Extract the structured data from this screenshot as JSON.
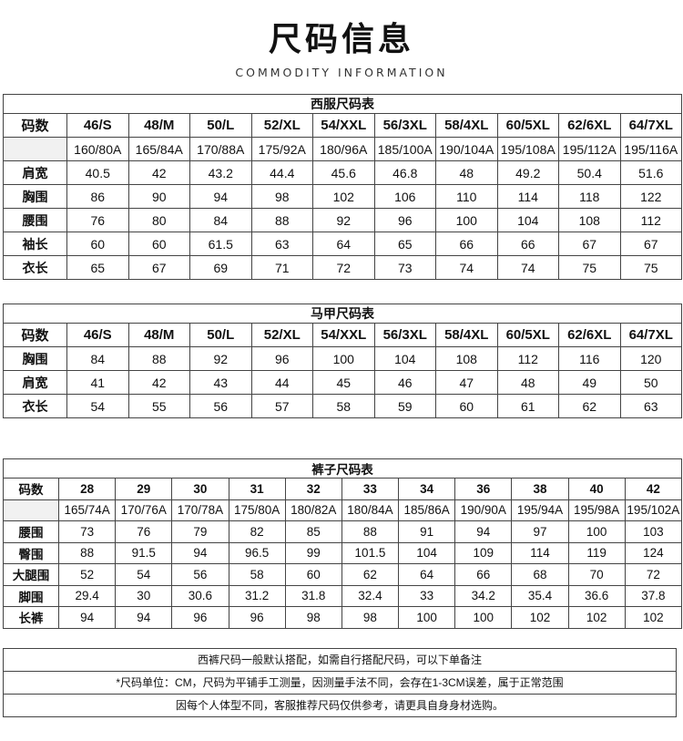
{
  "header": {
    "title": "尺码信息",
    "subtitle": "COMMODITY INFORMATION"
  },
  "tables": [
    {
      "caption": "西服尺码表",
      "header_label": "码数",
      "sizes": [
        "46/S",
        "48/M",
        "50/L",
        "52/XL",
        "54/XXL",
        "56/3XL",
        "58/4XL",
        "60/5XL",
        "62/6XL",
        "64/7XL"
      ],
      "rows": [
        {
          "label": "",
          "values": [
            "160/80A",
            "165/84A",
            "170/88A",
            "175/92A",
            "180/96A",
            "185/100A",
            "190/104A",
            "195/108A",
            "195/112A",
            "195/116A"
          ]
        },
        {
          "label": "肩宽",
          "values": [
            "40.5",
            "42",
            "43.2",
            "44.4",
            "45.6",
            "46.8",
            "48",
            "49.2",
            "50.4",
            "51.6"
          ]
        },
        {
          "label": "胸围",
          "values": [
            "86",
            "90",
            "94",
            "98",
            "102",
            "106",
            "110",
            "114",
            "118",
            "122"
          ]
        },
        {
          "label": "腰围",
          "values": [
            "76",
            "80",
            "84",
            "88",
            "92",
            "96",
            "100",
            "104",
            "108",
            "112"
          ]
        },
        {
          "label": "袖长",
          "values": [
            "60",
            "60",
            "61.5",
            "63",
            "64",
            "65",
            "66",
            "66",
            "67",
            "67"
          ]
        },
        {
          "label": "衣长",
          "values": [
            "65",
            "67",
            "69",
            "71",
            "72",
            "73",
            "74",
            "74",
            "75",
            "75"
          ]
        }
      ]
    },
    {
      "caption": "马甲尺码表",
      "header_label": "码数",
      "sizes": [
        "46/S",
        "48/M",
        "50/L",
        "52/XL",
        "54/XXL",
        "56/3XL",
        "58/4XL",
        "60/5XL",
        "62/6XL",
        "64/7XL"
      ],
      "rows": [
        {
          "label": "胸围",
          "values": [
            "84",
            "88",
            "92",
            "96",
            "100",
            "104",
            "108",
            "112",
            "116",
            "120"
          ]
        },
        {
          "label": "肩宽",
          "values": [
            "41",
            "42",
            "43",
            "44",
            "45",
            "46",
            "47",
            "48",
            "49",
            "50"
          ]
        },
        {
          "label": "衣长",
          "values": [
            "54",
            "55",
            "56",
            "57",
            "58",
            "59",
            "60",
            "61",
            "62",
            "63"
          ]
        }
      ]
    },
    {
      "caption": "裤子尺码表",
      "header_label": "码数",
      "sizes": [
        "28",
        "29",
        "30",
        "31",
        "32",
        "33",
        "34",
        "36",
        "38",
        "40",
        "42"
      ],
      "rows": [
        {
          "label": "",
          "values": [
            "165/74A",
            "170/76A",
            "170/78A",
            "175/80A",
            "180/82A",
            "180/84A",
            "185/86A",
            "190/90A",
            "195/94A",
            "195/98A",
            "195/102A"
          ]
        },
        {
          "label": "腰围",
          "values": [
            "73",
            "76",
            "79",
            "82",
            "85",
            "88",
            "91",
            "94",
            "97",
            "100",
            "103"
          ]
        },
        {
          "label": "臀围",
          "values": [
            "88",
            "91.5",
            "94",
            "96.5",
            "99",
            "101.5",
            "104",
            "109",
            "114",
            "119",
            "124"
          ]
        },
        {
          "label": "大腿围",
          "values": [
            "52",
            "54",
            "56",
            "58",
            "60",
            "62",
            "64",
            "66",
            "68",
            "70",
            "72"
          ]
        },
        {
          "label": "脚围",
          "values": [
            "29.4",
            "30",
            "30.6",
            "31.2",
            "31.8",
            "32.4",
            "33",
            "34.2",
            "35.4",
            "36.6",
            "37.8"
          ]
        },
        {
          "label": "长裤",
          "values": [
            "94",
            "94",
            "96",
            "96",
            "98",
            "98",
            "100",
            "100",
            "102",
            "102",
            "102"
          ]
        }
      ]
    }
  ],
  "notes": [
    "西裤尺码一般默认搭配，如需自行搭配尺码，可以下单备注",
    "*尺码单位：CM，尺码为平铺手工测量，因测量手法不同，会存在1-3CM误差，属于正常范围",
    "因每个人体型不同，客服推荐尺码仅供参考，请更具自身身材选购。"
  ]
}
